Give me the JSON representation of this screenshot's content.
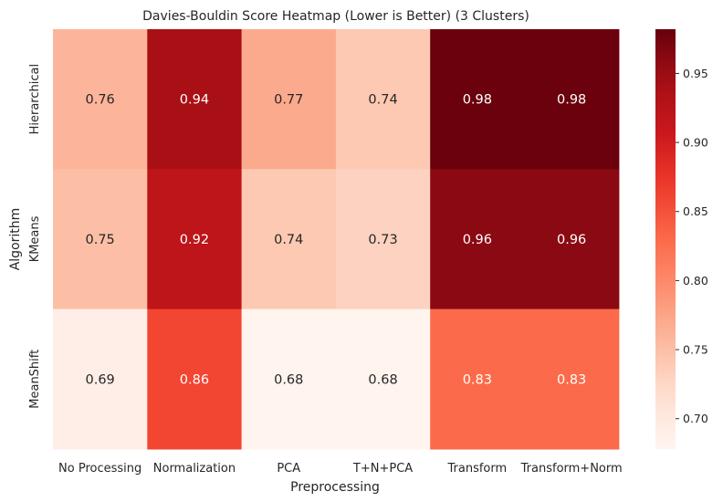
{
  "chart_data": {
    "type": "heatmap",
    "title": "Davies-Bouldin Score Heatmap (Lower is Better) (3 Clusters)",
    "xlabel": "Preprocessing",
    "ylabel": "Algorithm",
    "x_categories": [
      "No Processing",
      "Normalization",
      "PCA",
      "T+N+PCA",
      "Transform",
      "Transform+Norm"
    ],
    "y_categories": [
      "Hierarchical",
      "KMeans",
      "MeanShift"
    ],
    "values": [
      [
        0.76,
        0.94,
        0.77,
        0.74,
        0.98,
        0.98
      ],
      [
        0.75,
        0.92,
        0.74,
        0.73,
        0.96,
        0.96
      ],
      [
        0.69,
        0.86,
        0.68,
        0.68,
        0.83,
        0.83
      ]
    ],
    "annotations": [
      [
        "0.76",
        "0.94",
        "0.77",
        "0.74",
        "0.98",
        "0.98"
      ],
      [
        "0.75",
        "0.92",
        "0.74",
        "0.73",
        "0.96",
        "0.96"
      ],
      [
        "0.69",
        "0.86",
        "0.68",
        "0.68",
        "0.83",
        "0.83"
      ]
    ],
    "colormap": "Reds",
    "color_range": [
      0.678,
      0.982
    ],
    "colorbar_ticks": [
      "0.70",
      "0.75",
      "0.80",
      "0.85",
      "0.90",
      "0.95"
    ],
    "colorbar_position": "right"
  }
}
